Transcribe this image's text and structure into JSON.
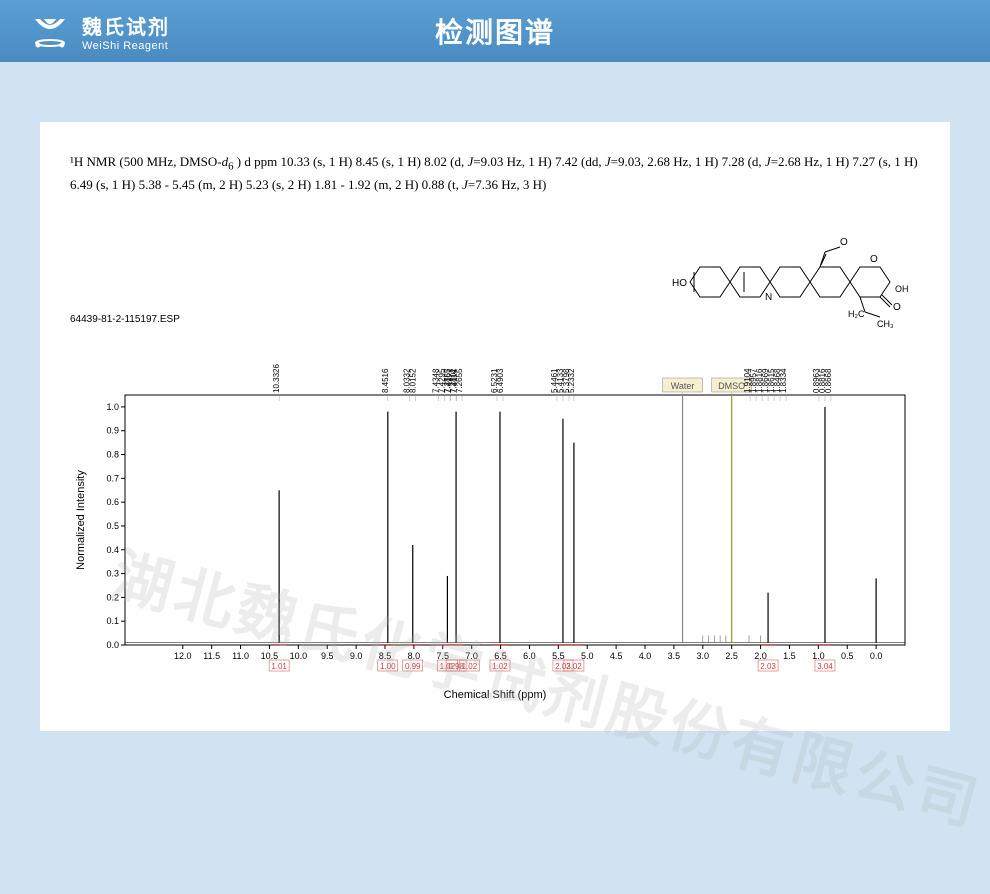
{
  "header": {
    "logo_cn": "魏氏试剂",
    "logo_en": "WeiShi Reagent",
    "title": "检测图谱"
  },
  "nmr": {
    "description_line1": "¹H NMR (500 MHz, DMSO-",
    "solvent_italic": "d",
    "solvent_sub": "6",
    "description_part2": " ) d ppm 10.33 (s, 1 H) 8.45 (s, 1 H) 8.02 (d, ",
    "j1_label": "J",
    "j1_val": "=9.03 Hz, 1 H) 7.42 (dd, ",
    "j2_label": "J",
    "j2_val": "=9.03, 2.68 Hz, 1 H) 7.28 (d, ",
    "j3_label": "J",
    "j3_val": "=2.68 Hz, 1 H) 7.27 (s, 1 H) 6.49 (s, 1 H) 5.38 - 5.45 (m, 2 H) 5.23 (s, 2 H) 1.81 - 1.92 (m, 2 H) 0.88 (t,  ",
    "j4_label": "J",
    "j4_val": "=7.36 Hz, 3 H)"
  },
  "structure": {
    "oh_left": "HO",
    "n_label": "N",
    "o_labels": [
      "O",
      "O",
      "O"
    ],
    "ch2ch3": "H₂C",
    "ch3": "CH₃",
    "oh_right": "OH"
  },
  "spectrum": {
    "esp_label": "64439-81-2-115197.ESP",
    "y_label": "Normalized Intensity",
    "x_label": "Chemical Shift (ppm)",
    "x_min": -0.5,
    "x_max": 13.0,
    "y_min": 0,
    "y_max": 1.05,
    "x_ticks": [
      12.0,
      11.5,
      11.0,
      10.5,
      10.0,
      9.5,
      9.0,
      8.5,
      8.0,
      7.5,
      7.0,
      6.5,
      6.0,
      5.5,
      5.0,
      4.5,
      4.0,
      3.5,
      3.0,
      2.5,
      2.0,
      1.5,
      1.0,
      0.5,
      0
    ],
    "y_ticks": [
      0,
      0.1,
      0.2,
      0.3,
      0.4,
      0.5,
      0.6,
      0.7,
      0.8,
      0.9,
      1.0
    ],
    "peaks": [
      {
        "ppm": 10.3326,
        "h": 0.65,
        "labels": [
          "10.3326"
        ],
        "integral": "1.01"
      },
      {
        "ppm": 8.4516,
        "h": 0.98,
        "labels": [
          "8.4516"
        ],
        "integral": "1.00"
      },
      {
        "ppm": 8.02,
        "h": 0.42,
        "labels": [
          "8.0332",
          "8.0152"
        ],
        "integral": "0.99"
      },
      {
        "ppm": 7.42,
        "h": 0.29,
        "labels": [
          "7.4348",
          "7.4295",
          "7.4167",
          "7.4114"
        ],
        "integral": "1.02",
        "integral2": "1.02"
      },
      {
        "ppm": 7.27,
        "h": 0.98,
        "labels": [
          "7.2855",
          "7.2802",
          "7.2655"
        ],
        "integral": "0.98"
      },
      {
        "ppm": 6.51,
        "h": 0.98,
        "labels": [
          "6.5231",
          "6.4903"
        ],
        "integral": "1.02"
      },
      {
        "ppm": 5.42,
        "h": 0.95,
        "labels": [
          "5.4461",
          "5.4133",
          "5.3798"
        ],
        "integral": "2.03"
      },
      {
        "ppm": 5.23,
        "h": 0.85,
        "labels": [
          "5.2332"
        ],
        "integral": "2.02"
      },
      {
        "ppm": 3.35,
        "h": 1.05,
        "labels": [],
        "solvent": "Water",
        "color": "#888888"
      },
      {
        "ppm": 2.5,
        "h": 1.05,
        "labels": [],
        "solvent": "DMSO",
        "color": "#9a9a20"
      },
      {
        "ppm": 1.87,
        "h": 0.22,
        "labels": [
          "1.9104",
          "1.8957",
          "1.8816",
          "1.8669",
          "1.8615",
          "1.8468",
          "1.8334"
        ],
        "integral": "2.03"
      },
      {
        "ppm": 0.885,
        "h": 1.0,
        "labels": [
          "0.8963",
          "0.8816",
          "0.8668"
        ],
        "integral": "3.04"
      },
      {
        "ppm": 0.0,
        "h": 0.28,
        "labels": []
      }
    ],
    "grid_color": "#cccccc",
    "axis_color": "#000000",
    "peak_color": "#000000",
    "background": "#ffffff"
  },
  "watermark": "湖北魏氏化学试剂股份有限公司"
}
